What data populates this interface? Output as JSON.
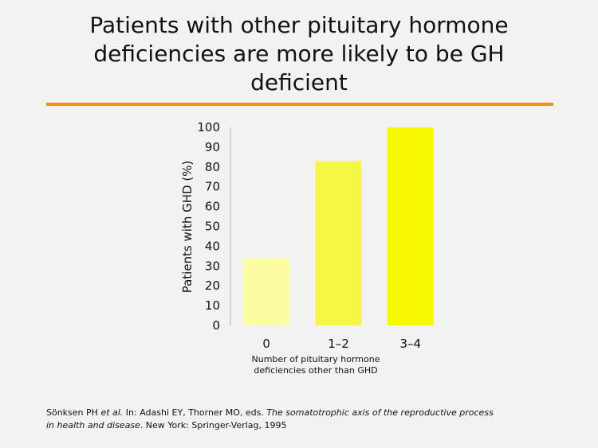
{
  "slide": {
    "title_lines": [
      "Patients with other pituitary hormone",
      "deficiencies are more likely to be GH",
      "deficient"
    ],
    "accent_color": "#f28c1c"
  },
  "chart_data": {
    "type": "bar",
    "categories": [
      "0",
      "1–2",
      "3–4"
    ],
    "values": [
      34,
      83,
      100
    ],
    "bar_colors": [
      "#fbfba0",
      "#f5f544",
      "#f8f800"
    ],
    "ylabel": "Patients with GHD (%)",
    "xlabel_lines": [
      "Number of pituitary  hormone",
      "deficiencies other than GHD"
    ],
    "ylim": [
      0,
      100
    ],
    "yticks": [
      0,
      10,
      20,
      30,
      40,
      50,
      60,
      70,
      80,
      90,
      100
    ],
    "grid": false
  },
  "citation": {
    "line1_pre": "Sönksen PH ",
    "line1_etal": "et al.",
    "line1_mid": " In: Adashi EY, Thorner MO, eds. ",
    "line1_italic": "The somatotrophic axis of the reproductive process",
    "line2_italic": "in health and disease",
    "line2_post": ". New York: Springer-Verlag, 1995"
  }
}
